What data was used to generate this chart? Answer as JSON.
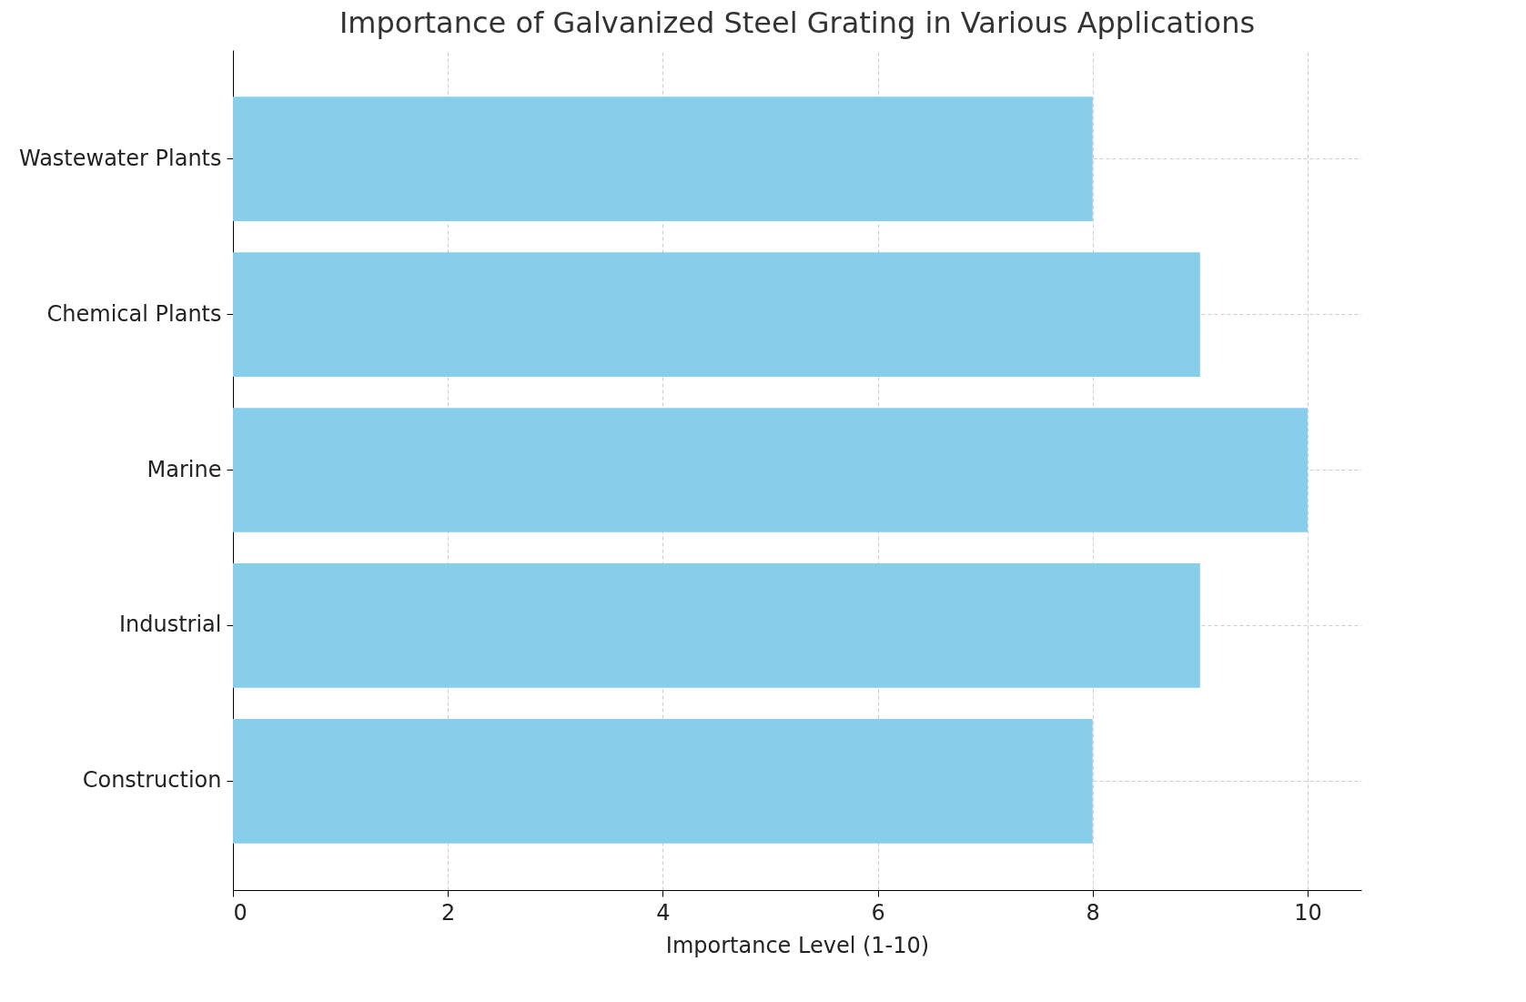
{
  "chart_data": {
    "type": "bar",
    "orientation": "horizontal",
    "title": "Importance of Galvanized Steel Grating in Various Applications",
    "xlabel": "Importance Level (1-10)",
    "categories": [
      "Wastewater Plants",
      "Chemical Plants",
      "Marine",
      "Industrial",
      "Construction"
    ],
    "values": [
      8,
      9,
      10,
      9,
      8
    ],
    "color": "#87ceeb",
    "xlim": [
      0,
      10.5
    ],
    "xticks": [
      0,
      2,
      4,
      6,
      8,
      10
    ],
    "grid": true
  }
}
